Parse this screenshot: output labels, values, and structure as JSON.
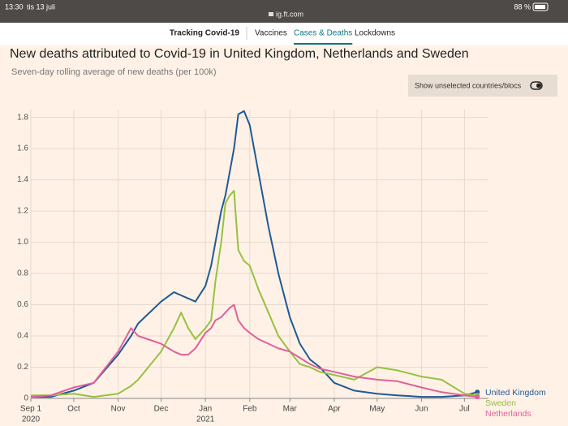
{
  "status_bar": {
    "time": "13:30",
    "date": "tis 13 juli",
    "url": "ig.ft.com",
    "battery": "88 %"
  },
  "nav": {
    "title": "Tracking Covid-19",
    "tabs": [
      "Vaccines",
      "Cases & Deaths",
      "Lockdowns"
    ],
    "active_tab": 1
  },
  "toggle": "Show unselected countries/blocs",
  "chart_data": {
    "type": "line",
    "title": "New deaths attributed to Covid-19 in United Kingdom, Netherlands and Sweden",
    "subtitle": "Seven-day rolling average of new deaths (per 100k)",
    "x": [
      "2020-09-01",
      "2020-09-15",
      "2020-10-01",
      "2020-10-15",
      "2020-11-01",
      "2020-11-10",
      "2020-11-15",
      "2020-12-01",
      "2020-12-10",
      "2020-12-15",
      "2020-12-20",
      "2020-12-25",
      "2021-01-01",
      "2021-01-05",
      "2021-01-08",
      "2021-01-12",
      "2021-01-15",
      "2021-01-18",
      "2021-01-21",
      "2021-01-24",
      "2021-01-28",
      "2021-02-01",
      "2021-02-07",
      "2021-02-14",
      "2021-02-21",
      "2021-03-01",
      "2021-03-08",
      "2021-03-15",
      "2021-03-22",
      "2021-04-01",
      "2021-04-15",
      "2021-05-01",
      "2021-05-15",
      "2021-06-01",
      "2021-06-15",
      "2021-07-01",
      "2021-07-10"
    ],
    "series": [
      {
        "name": "United Kingdom",
        "color": "#1f5a96",
        "values": [
          0.01,
          0.01,
          0.05,
          0.1,
          0.28,
          0.4,
          0.48,
          0.62,
          0.68,
          0.66,
          0.64,
          0.62,
          0.72,
          0.85,
          1.0,
          1.2,
          1.3,
          1.45,
          1.6,
          1.82,
          1.84,
          1.75,
          1.45,
          1.1,
          0.8,
          0.52,
          0.35,
          0.25,
          0.2,
          0.1,
          0.05,
          0.03,
          0.02,
          0.01,
          0.01,
          0.02,
          0.04
        ]
      },
      {
        "name": "Sweden",
        "color": "#96c142",
        "values": [
          0.02,
          0.02,
          0.03,
          0.01,
          0.03,
          0.08,
          0.12,
          0.3,
          0.45,
          0.55,
          0.45,
          0.38,
          0.45,
          0.5,
          0.75,
          1.0,
          1.25,
          1.3,
          1.33,
          0.95,
          0.88,
          0.85,
          0.7,
          0.55,
          0.4,
          0.3,
          0.22,
          0.2,
          0.17,
          0.15,
          0.12,
          0.2,
          0.18,
          0.14,
          0.12,
          0.03,
          0.02
        ]
      },
      {
        "name": "Netherlands",
        "color": "#e0609c",
        "values": [
          0.01,
          0.02,
          0.07,
          0.1,
          0.3,
          0.45,
          0.4,
          0.35,
          0.3,
          0.28,
          0.28,
          0.32,
          0.42,
          0.45,
          0.5,
          0.52,
          0.55,
          0.58,
          0.6,
          0.5,
          0.45,
          0.42,
          0.38,
          0.35,
          0.32,
          0.3,
          0.26,
          0.22,
          0.19,
          0.17,
          0.14,
          0.12,
          0.11,
          0.07,
          0.04,
          0.02,
          0.01
        ]
      }
    ],
    "xlim": [
      "2020-09-01",
      "2021-07-11"
    ],
    "xticks": [
      {
        "value": "2020-09-01",
        "label": "Sep 1"
      },
      {
        "value": "2020-10-01",
        "label": "Oct"
      },
      {
        "value": "2020-11-01",
        "label": "Nov"
      },
      {
        "value": "2020-12-01",
        "label": "Dec"
      },
      {
        "value": "2021-01-01",
        "label": "Jan"
      },
      {
        "value": "2021-02-01",
        "label": "Feb"
      },
      {
        "value": "2021-03-01",
        "label": "Mar"
      },
      {
        "value": "2021-04-01",
        "label": "Apr"
      },
      {
        "value": "2021-05-01",
        "label": "May"
      },
      {
        "value": "2021-06-01",
        "label": "Jun"
      },
      {
        "value": "2021-07-01",
        "label": "Jul"
      }
    ],
    "year_labels": [
      {
        "value": "2020-09-01",
        "label": "2020"
      },
      {
        "value": "2021-01-01",
        "label": "2021"
      }
    ],
    "ylim": [
      0,
      1.85
    ],
    "yticks": [
      0,
      0.2,
      0.4,
      0.6,
      0.8,
      {
        "value": 1,
        "label": "1.0"
      },
      1.2,
      1.4,
      1.6,
      1.8
    ],
    "grid": true
  }
}
